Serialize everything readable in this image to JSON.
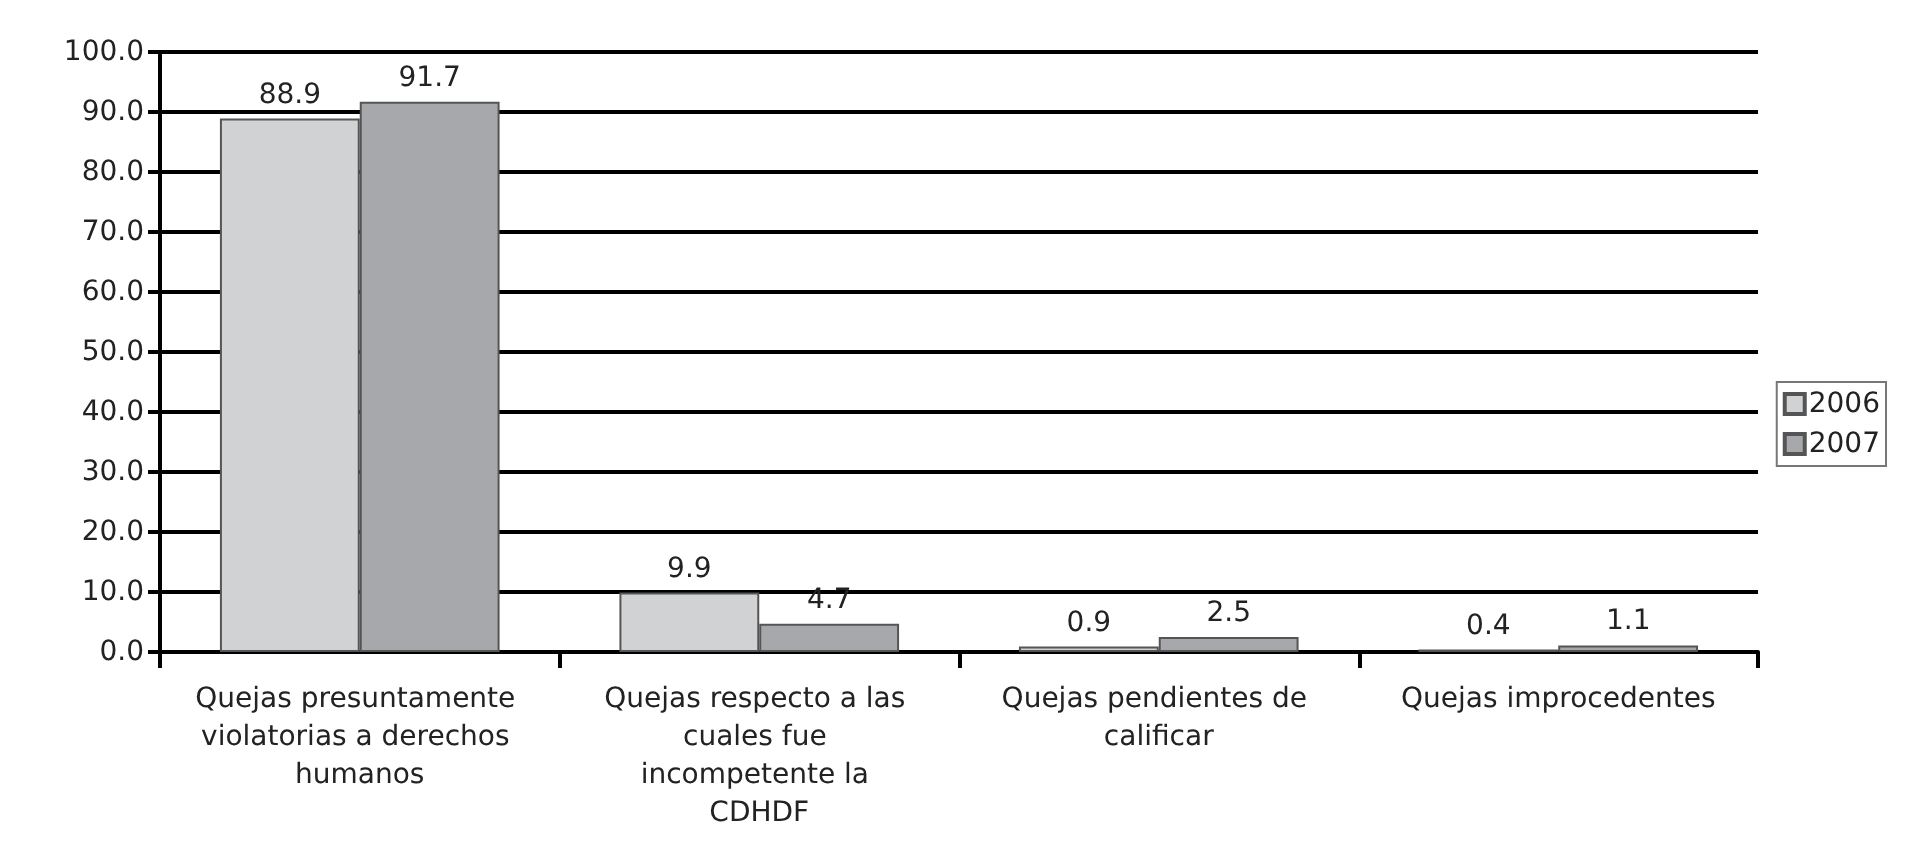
{
  "chart_data": {
    "type": "bar",
    "categories": [
      "Quejas presuntamente violatorias a derechos humanos",
      "Quejas respecto a las cuales fue incompetente la CDHDF",
      "Quejas pendientes de calificar",
      "Quejas improcedentes"
    ],
    "series": [
      {
        "name": "2006",
        "color": "#d1d2d4",
        "values": [
          88.9,
          9.9,
          0.9,
          0.4
        ]
      },
      {
        "name": "2007",
        "color": "#a7a8ab",
        "values": [
          91.7,
          4.7,
          2.5,
          1.1
        ]
      }
    ],
    "ylim": [
      0,
      100
    ],
    "yticks": [
      {
        "value": 0,
        "label": "0.0"
      },
      {
        "value": 10,
        "label": "10.0"
      },
      {
        "value": 20,
        "label": "20.0"
      },
      {
        "value": 30,
        "label": "30.0"
      },
      {
        "value": 40,
        "label": "40.0"
      },
      {
        "value": 50,
        "label": "50.0"
      },
      {
        "value": 60,
        "label": "60.0"
      },
      {
        "value": 70,
        "label": "70.0"
      },
      {
        "value": 80,
        "label": "80.0"
      },
      {
        "value": 90,
        "label": "90.0"
      },
      {
        "value": 100,
        "label": "100.0"
      }
    ],
    "grid": "y",
    "legend": "right",
    "data_labels": true
  }
}
